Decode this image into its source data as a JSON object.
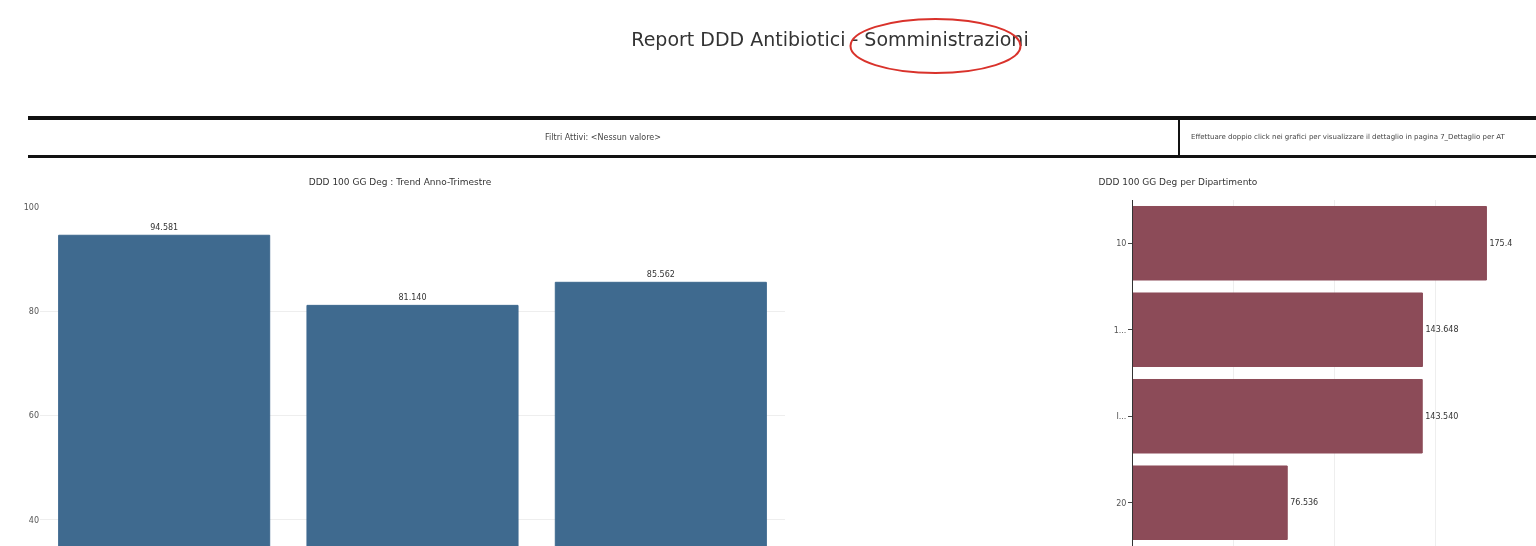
{
  "chart_data": [
    {
      "type": "other",
      "title": "Report DDD Antibiotici - Somministrazioni",
      "annotations": [
        "Filtri Attivi: <Nessun valore>",
        "Effettuare doppio click nei grafici per visualizzare il dettaglio in pagina 7_Dettaglio per AT"
      ]
    },
    {
      "type": "bar",
      "title": "DDD 100 GG Deg : Trend Anno-Trimestre",
      "categories": [
        null,
        null,
        null
      ],
      "values": [
        94.581,
        81.14,
        85.562
      ],
      "value_labels": [
        "94.581",
        "81.140",
        "85.562"
      ],
      "color": "#3f6a8f",
      "ylim": [
        35,
        100
      ],
      "yticks": [
        40,
        60,
        80,
        100
      ],
      "grid": "y",
      "tick_labels": "y"
    },
    {
      "type": "bar",
      "orientation": "horizontal",
      "title": "DDD 100 GG Deg per Dipartimento",
      "categories": [
        "10",
        "1...",
        "I...",
        "20"
      ],
      "values": [
        175.4,
        143.648,
        143.54,
        76.536
      ],
      "value_labels": [
        "175.4",
        "143.648",
        "143.540",
        "76.536"
      ],
      "color": "#8c4b58",
      "xlim": [
        0,
        200
      ],
      "xticks": [
        {
          "value": 0,
          "label": null
        },
        {
          "value": 50,
          "label": null
        },
        {
          "value": 100,
          "label": null
        },
        {
          "value": 150,
          "label": null
        }
      ],
      "grid": "x",
      "tick_labels": "y"
    }
  ]
}
